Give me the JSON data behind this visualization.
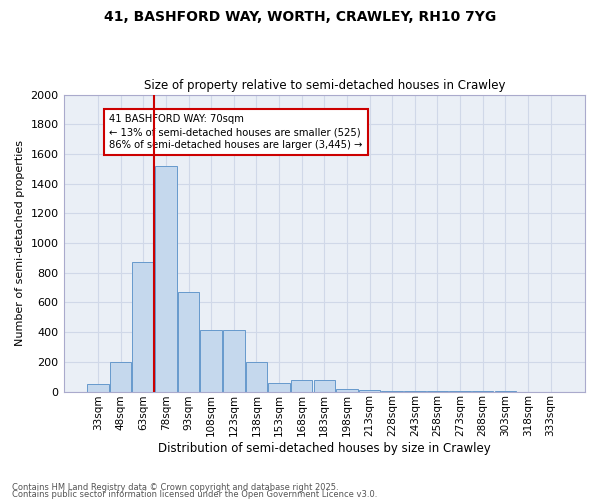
{
  "title1": "41, BASHFORD WAY, WORTH, CRAWLEY, RH10 7YG",
  "title2": "Size of property relative to semi-detached houses in Crawley",
  "xlabel": "Distribution of semi-detached houses by size in Crawley",
  "ylabel": "Number of semi-detached properties",
  "categories": [
    "33sqm",
    "48sqm",
    "63sqm",
    "78sqm",
    "93sqm",
    "108sqm",
    "123sqm",
    "138sqm",
    "153sqm",
    "168sqm",
    "183sqm",
    "198sqm",
    "213sqm",
    "228sqm",
    "243sqm",
    "258sqm",
    "273sqm",
    "288sqm",
    "303sqm",
    "318sqm",
    "333sqm"
  ],
  "values": [
    50,
    200,
    870,
    1520,
    670,
    415,
    415,
    200,
    55,
    80,
    75,
    20,
    10,
    5,
    3,
    2,
    2,
    1,
    1,
    0,
    0
  ],
  "bar_color": "#c5d8ed",
  "bar_edge_color": "#6699cc",
  "vline_color": "#cc0000",
  "vline_pos": 2.47,
  "annotation_text": "41 BASHFORD WAY: 70sqm\n← 13% of semi-detached houses are smaller (525)\n86% of semi-detached houses are larger (3,445) →",
  "annotation_box_color": "#cc0000",
  "ylim": [
    0,
    2000
  ],
  "yticks": [
    0,
    200,
    400,
    600,
    800,
    1000,
    1200,
    1400,
    1600,
    1800,
    2000
  ],
  "grid_color": "#d0d8e8",
  "bg_color": "#eaeff6",
  "footer1": "Contains HM Land Registry data © Crown copyright and database right 2025.",
  "footer2": "Contains public sector information licensed under the Open Government Licence v3.0."
}
